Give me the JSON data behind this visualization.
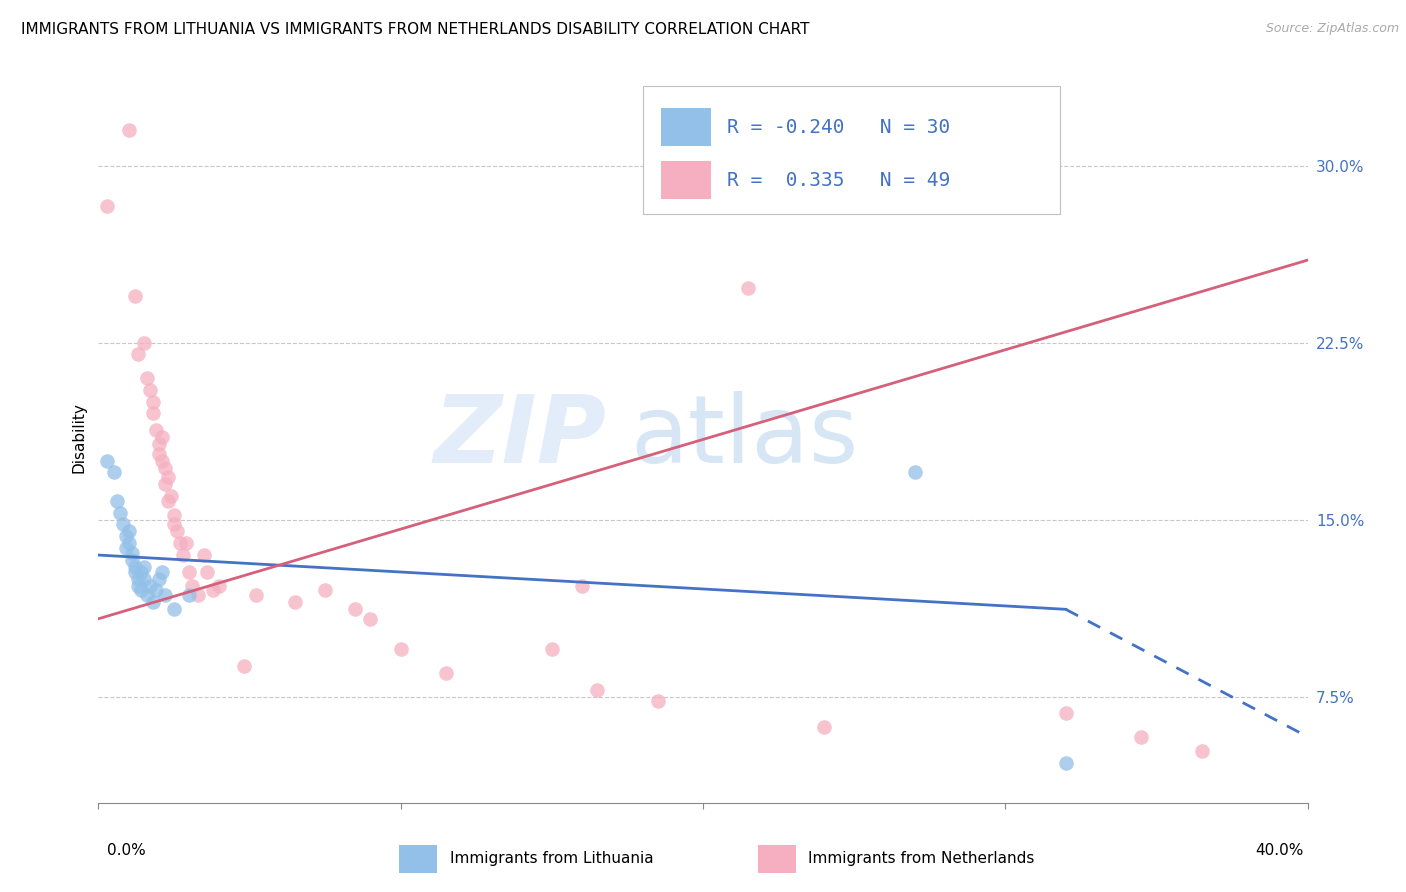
{
  "title": "IMMIGRANTS FROM LITHUANIA VS IMMIGRANTS FROM NETHERLANDS DISABILITY CORRELATION CHART",
  "source": "Source: ZipAtlas.com",
  "ylabel": "Disability",
  "ytick_values": [
    0.075,
    0.15,
    0.225,
    0.3
  ],
  "xlim": [
    0.0,
    0.4
  ],
  "ylim": [
    0.03,
    0.34
  ],
  "legend_label1": "Immigrants from Lithuania",
  "legend_label2": "Immigrants from Netherlands",
  "blue_color": "#92c0e8",
  "pink_color": "#f5afc0",
  "blue_line_color": "#4472c4",
  "pink_line_color": "#d4607a",
  "watermark_zip": "ZIP",
  "watermark_atlas": "atlas",
  "blue_points": [
    [
      0.003,
      0.175
    ],
    [
      0.005,
      0.17
    ],
    [
      0.006,
      0.158
    ],
    [
      0.007,
      0.153
    ],
    [
      0.008,
      0.148
    ],
    [
      0.009,
      0.143
    ],
    [
      0.009,
      0.138
    ],
    [
      0.01,
      0.145
    ],
    [
      0.01,
      0.14
    ],
    [
      0.011,
      0.136
    ],
    [
      0.011,
      0.133
    ],
    [
      0.012,
      0.13
    ],
    [
      0.012,
      0.128
    ],
    [
      0.013,
      0.125
    ],
    [
      0.013,
      0.122
    ],
    [
      0.014,
      0.128
    ],
    [
      0.014,
      0.12
    ],
    [
      0.015,
      0.13
    ],
    [
      0.015,
      0.125
    ],
    [
      0.016,
      0.118
    ],
    [
      0.017,
      0.122
    ],
    [
      0.018,
      0.115
    ],
    [
      0.019,
      0.12
    ],
    [
      0.02,
      0.125
    ],
    [
      0.021,
      0.128
    ],
    [
      0.022,
      0.118
    ],
    [
      0.025,
      0.112
    ],
    [
      0.03,
      0.118
    ],
    [
      0.27,
      0.17
    ],
    [
      0.32,
      0.047
    ]
  ],
  "pink_points": [
    [
      0.003,
      0.283
    ],
    [
      0.01,
      0.315
    ],
    [
      0.012,
      0.245
    ],
    [
      0.013,
      0.22
    ],
    [
      0.015,
      0.225
    ],
    [
      0.016,
      0.21
    ],
    [
      0.017,
      0.205
    ],
    [
      0.018,
      0.2
    ],
    [
      0.018,
      0.195
    ],
    [
      0.019,
      0.188
    ],
    [
      0.02,
      0.182
    ],
    [
      0.02,
      0.178
    ],
    [
      0.021,
      0.185
    ],
    [
      0.021,
      0.175
    ],
    [
      0.022,
      0.172
    ],
    [
      0.022,
      0.165
    ],
    [
      0.023,
      0.168
    ],
    [
      0.023,
      0.158
    ],
    [
      0.024,
      0.16
    ],
    [
      0.025,
      0.152
    ],
    [
      0.025,
      0.148
    ],
    [
      0.026,
      0.145
    ],
    [
      0.027,
      0.14
    ],
    [
      0.028,
      0.135
    ],
    [
      0.029,
      0.14
    ],
    [
      0.03,
      0.128
    ],
    [
      0.031,
      0.122
    ],
    [
      0.033,
      0.118
    ],
    [
      0.035,
      0.135
    ],
    [
      0.036,
      0.128
    ],
    [
      0.038,
      0.12
    ],
    [
      0.04,
      0.122
    ],
    [
      0.048,
      0.088
    ],
    [
      0.052,
      0.118
    ],
    [
      0.065,
      0.115
    ],
    [
      0.075,
      0.12
    ],
    [
      0.085,
      0.112
    ],
    [
      0.09,
      0.108
    ],
    [
      0.1,
      0.095
    ],
    [
      0.115,
      0.085
    ],
    [
      0.15,
      0.095
    ],
    [
      0.16,
      0.122
    ],
    [
      0.165,
      0.078
    ],
    [
      0.185,
      0.073
    ],
    [
      0.215,
      0.248
    ],
    [
      0.24,
      0.062
    ],
    [
      0.32,
      0.068
    ],
    [
      0.345,
      0.058
    ],
    [
      0.365,
      0.052
    ]
  ],
  "blue_solid_trend": [
    0.0,
    0.135,
    0.32,
    0.112
  ],
  "blue_dashed_trend": [
    0.32,
    0.112,
    0.4,
    0.058
  ],
  "pink_trend": [
    0.0,
    0.108,
    0.4,
    0.26
  ],
  "title_fontsize": 11,
  "axis_label_fontsize": 11,
  "tick_fontsize": 11,
  "legend_text_fontsize": 14,
  "source_fontsize": 9
}
